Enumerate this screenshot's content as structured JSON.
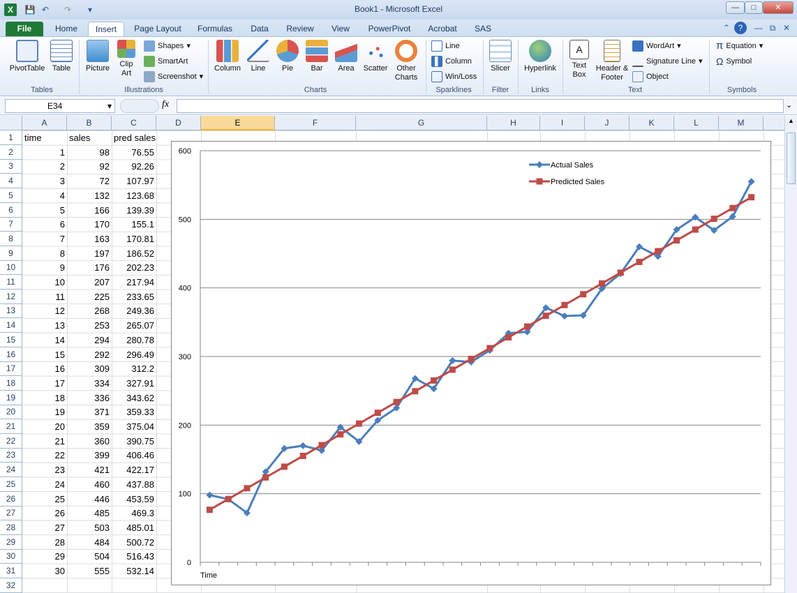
{
  "window": {
    "title": "Book1  -  Microsoft Excel"
  },
  "tabs": [
    "File",
    "Home",
    "Insert",
    "Page Layout",
    "Formulas",
    "Data",
    "Review",
    "View",
    "PowerPivot",
    "Acrobat",
    "SAS"
  ],
  "active_tab": "Insert",
  "ribbon": {
    "groups": [
      "Tables",
      "Illustrations",
      "Charts",
      "Sparklines",
      "Filter",
      "Links",
      "Text",
      "Symbols"
    ],
    "tables": {
      "pivot": "PivotTable",
      "table": "Table"
    },
    "illustrations": {
      "picture": "Picture",
      "clip_art": "Clip Art",
      "shapes": "Shapes",
      "smartart": "SmartArt",
      "screenshot": "Screenshot"
    },
    "charts": {
      "column": "Column",
      "line": "Line",
      "pie": "Pie",
      "bar": "Bar",
      "area": "Area",
      "scatter": "Scatter",
      "other": "Other Charts"
    },
    "sparklines": {
      "line": "Line",
      "column": "Column",
      "winloss": "Win/Loss"
    },
    "filter": {
      "slicer": "Slicer"
    },
    "links": {
      "hyperlink": "Hyperlink"
    },
    "text": {
      "textbox": "Text Box",
      "header_footer": "Header & Footer",
      "wordart": "WordArt",
      "signature": "Signature Line",
      "object": "Object"
    },
    "symbols": {
      "equation": "Equation",
      "symbol": "Symbol"
    }
  },
  "formula_bar": {
    "name_box": "E34",
    "fx": "fx",
    "value": ""
  },
  "columns": [
    "A",
    "B",
    "C",
    "D",
    "E",
    "F",
    "G",
    "H",
    "I",
    "J",
    "K",
    "L",
    "M"
  ],
  "selected_column": "E",
  "rows": [
    "1",
    "2",
    "3",
    "4",
    "5",
    "6",
    "7",
    "8",
    "9",
    "10",
    "11",
    "12",
    "13",
    "14",
    "15",
    "16",
    "17",
    "18",
    "19",
    "20",
    "21",
    "22",
    "23",
    "24",
    "25",
    "26",
    "27",
    "28",
    "29",
    "30",
    "31",
    "32"
  ],
  "sheet": {
    "headers": [
      "time",
      "sales",
      "pred sales"
    ],
    "time": [
      "1",
      "2",
      "3",
      "4",
      "5",
      "6",
      "7",
      "8",
      "9",
      "10",
      "11",
      "12",
      "13",
      "14",
      "15",
      "16",
      "17",
      "18",
      "19",
      "20",
      "21",
      "22",
      "23",
      "24",
      "25",
      "26",
      "27",
      "28",
      "29",
      "30"
    ],
    "sales": [
      "98",
      "92",
      "72",
      "132",
      "166",
      "170",
      "163",
      "197",
      "176",
      "207",
      "225",
      "268",
      "253",
      "294",
      "292",
      "309",
      "334",
      "336",
      "371",
      "359",
      "360",
      "399",
      "421",
      "460",
      "446",
      "485",
      "503",
      "484",
      "504",
      "555"
    ],
    "pred": [
      "76.55",
      "92.26",
      "107.97",
      "123.68",
      "139.39",
      "155.1",
      "170.81",
      "186.52",
      "202.23",
      "217.94",
      "233.65",
      "249.36",
      "265.07",
      "280.78",
      "296.49",
      "312.2",
      "327.91",
      "343.62",
      "359.33",
      "375.04",
      "390.75",
      "406.46",
      "422.17",
      "437.88",
      "453.59",
      "469.3",
      "485.01",
      "500.72",
      "516.43",
      "532.14"
    ]
  },
  "chart_data": {
    "type": "line",
    "x": [
      1,
      2,
      3,
      4,
      5,
      6,
      7,
      8,
      9,
      10,
      11,
      12,
      13,
      14,
      15,
      16,
      17,
      18,
      19,
      20,
      21,
      22,
      23,
      24,
      25,
      26,
      27,
      28,
      29,
      30
    ],
    "series": [
      {
        "name": "Actual Sales",
        "color": "#4a7ebb",
        "marker": "diamond",
        "values": [
          98,
          92,
          72,
          132,
          166,
          170,
          163,
          197,
          176,
          207,
          225,
          268,
          253,
          294,
          292,
          309,
          334,
          336,
          371,
          359,
          360,
          399,
          421,
          460,
          446,
          485,
          503,
          484,
          504,
          555
        ]
      },
      {
        "name": "Predicted Sales",
        "color": "#be4b48",
        "marker": "square",
        "values": [
          76.55,
          92.26,
          107.97,
          123.68,
          139.39,
          155.1,
          170.81,
          186.52,
          202.23,
          217.94,
          233.65,
          249.36,
          265.07,
          280.78,
          296.49,
          312.2,
          327.91,
          343.62,
          359.33,
          375.04,
          390.75,
          406.46,
          422.17,
          437.88,
          453.59,
          469.3,
          485.01,
          500.72,
          516.43,
          532.14
        ]
      }
    ],
    "xlabel": "Time",
    "ylim": [
      0,
      600
    ],
    "yticks": [
      "0",
      "100",
      "200",
      "300",
      "400",
      "500",
      "600"
    ],
    "grid": true,
    "legend": "top-right"
  }
}
